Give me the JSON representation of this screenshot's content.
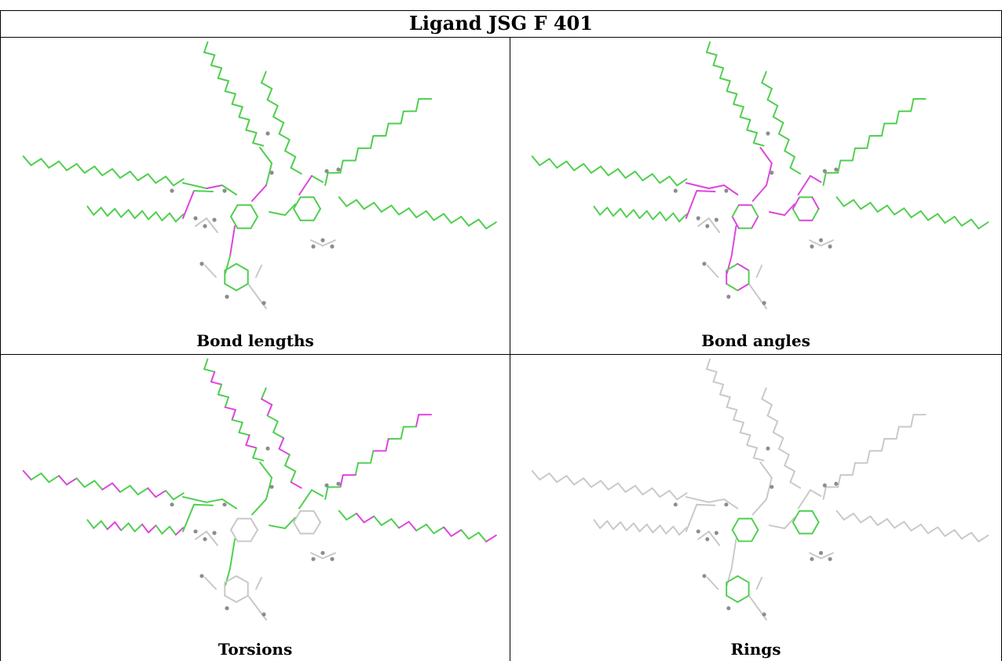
{
  "title": "Ligand JSG F 401",
  "panels": [
    {
      "label": "Bond lengths",
      "style": "lengths"
    },
    {
      "label": "Bond angles",
      "style": "angles"
    },
    {
      "label": "Torsions",
      "style": "torsions"
    },
    {
      "label": "Rings",
      "style": "rings"
    }
  ],
  "colors": {
    "ok": "#4fcf4f",
    "outlier": "#dd44dd",
    "neutral": "#c8c8c8",
    "atom": "#8c8c8c"
  }
}
